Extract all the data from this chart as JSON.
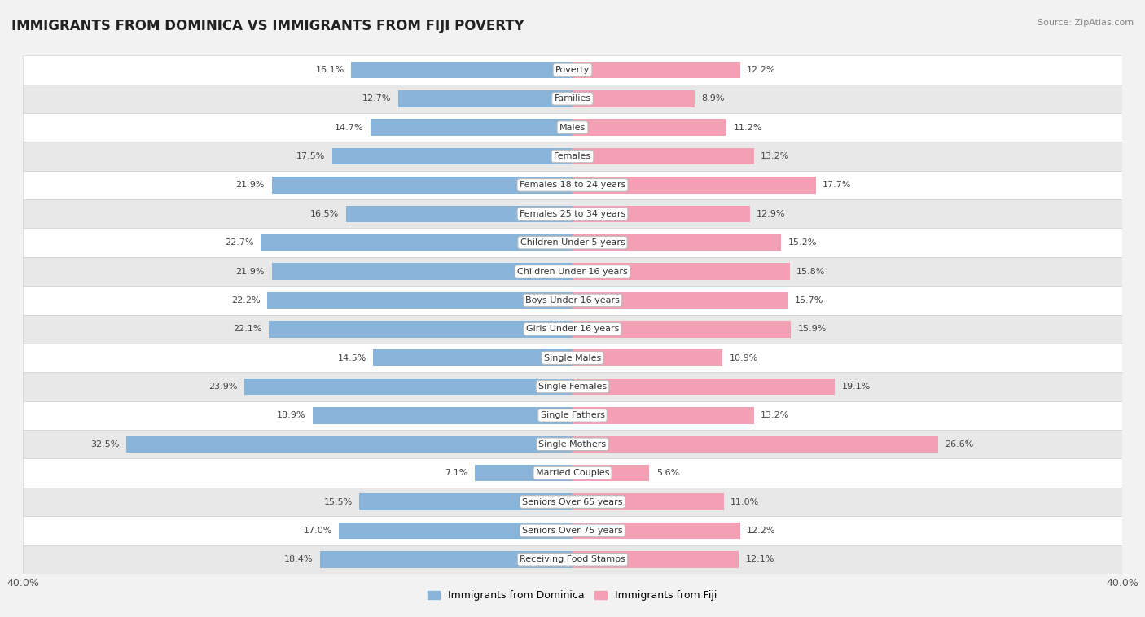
{
  "title": "IMMIGRANTS FROM DOMINICA VS IMMIGRANTS FROM FIJI POVERTY",
  "source": "Source: ZipAtlas.com",
  "categories": [
    "Poverty",
    "Families",
    "Males",
    "Females",
    "Females 18 to 24 years",
    "Females 25 to 34 years",
    "Children Under 5 years",
    "Children Under 16 years",
    "Boys Under 16 years",
    "Girls Under 16 years",
    "Single Males",
    "Single Females",
    "Single Fathers",
    "Single Mothers",
    "Married Couples",
    "Seniors Over 65 years",
    "Seniors Over 75 years",
    "Receiving Food Stamps"
  ],
  "dominica_values": [
    16.1,
    12.7,
    14.7,
    17.5,
    21.9,
    16.5,
    22.7,
    21.9,
    22.2,
    22.1,
    14.5,
    23.9,
    18.9,
    32.5,
    7.1,
    15.5,
    17.0,
    18.4
  ],
  "fiji_values": [
    12.2,
    8.9,
    11.2,
    13.2,
    17.7,
    12.9,
    15.2,
    15.8,
    15.7,
    15.9,
    10.9,
    19.1,
    13.2,
    26.6,
    5.6,
    11.0,
    12.2,
    12.1
  ],
  "dominica_color": "#89b4d9",
  "fiji_color": "#f4a0b4",
  "bar_height": 0.58,
  "xlim": 40.0,
  "bg_color": "#f2f2f2",
  "row_light": "#ffffff",
  "row_dark": "#e8e8e8",
  "title_fontsize": 12,
  "cat_fontsize": 8,
  "val_fontsize": 8,
  "legend_dominica": "Immigrants from Dominica",
  "legend_fiji": "Immigrants from Fiji"
}
